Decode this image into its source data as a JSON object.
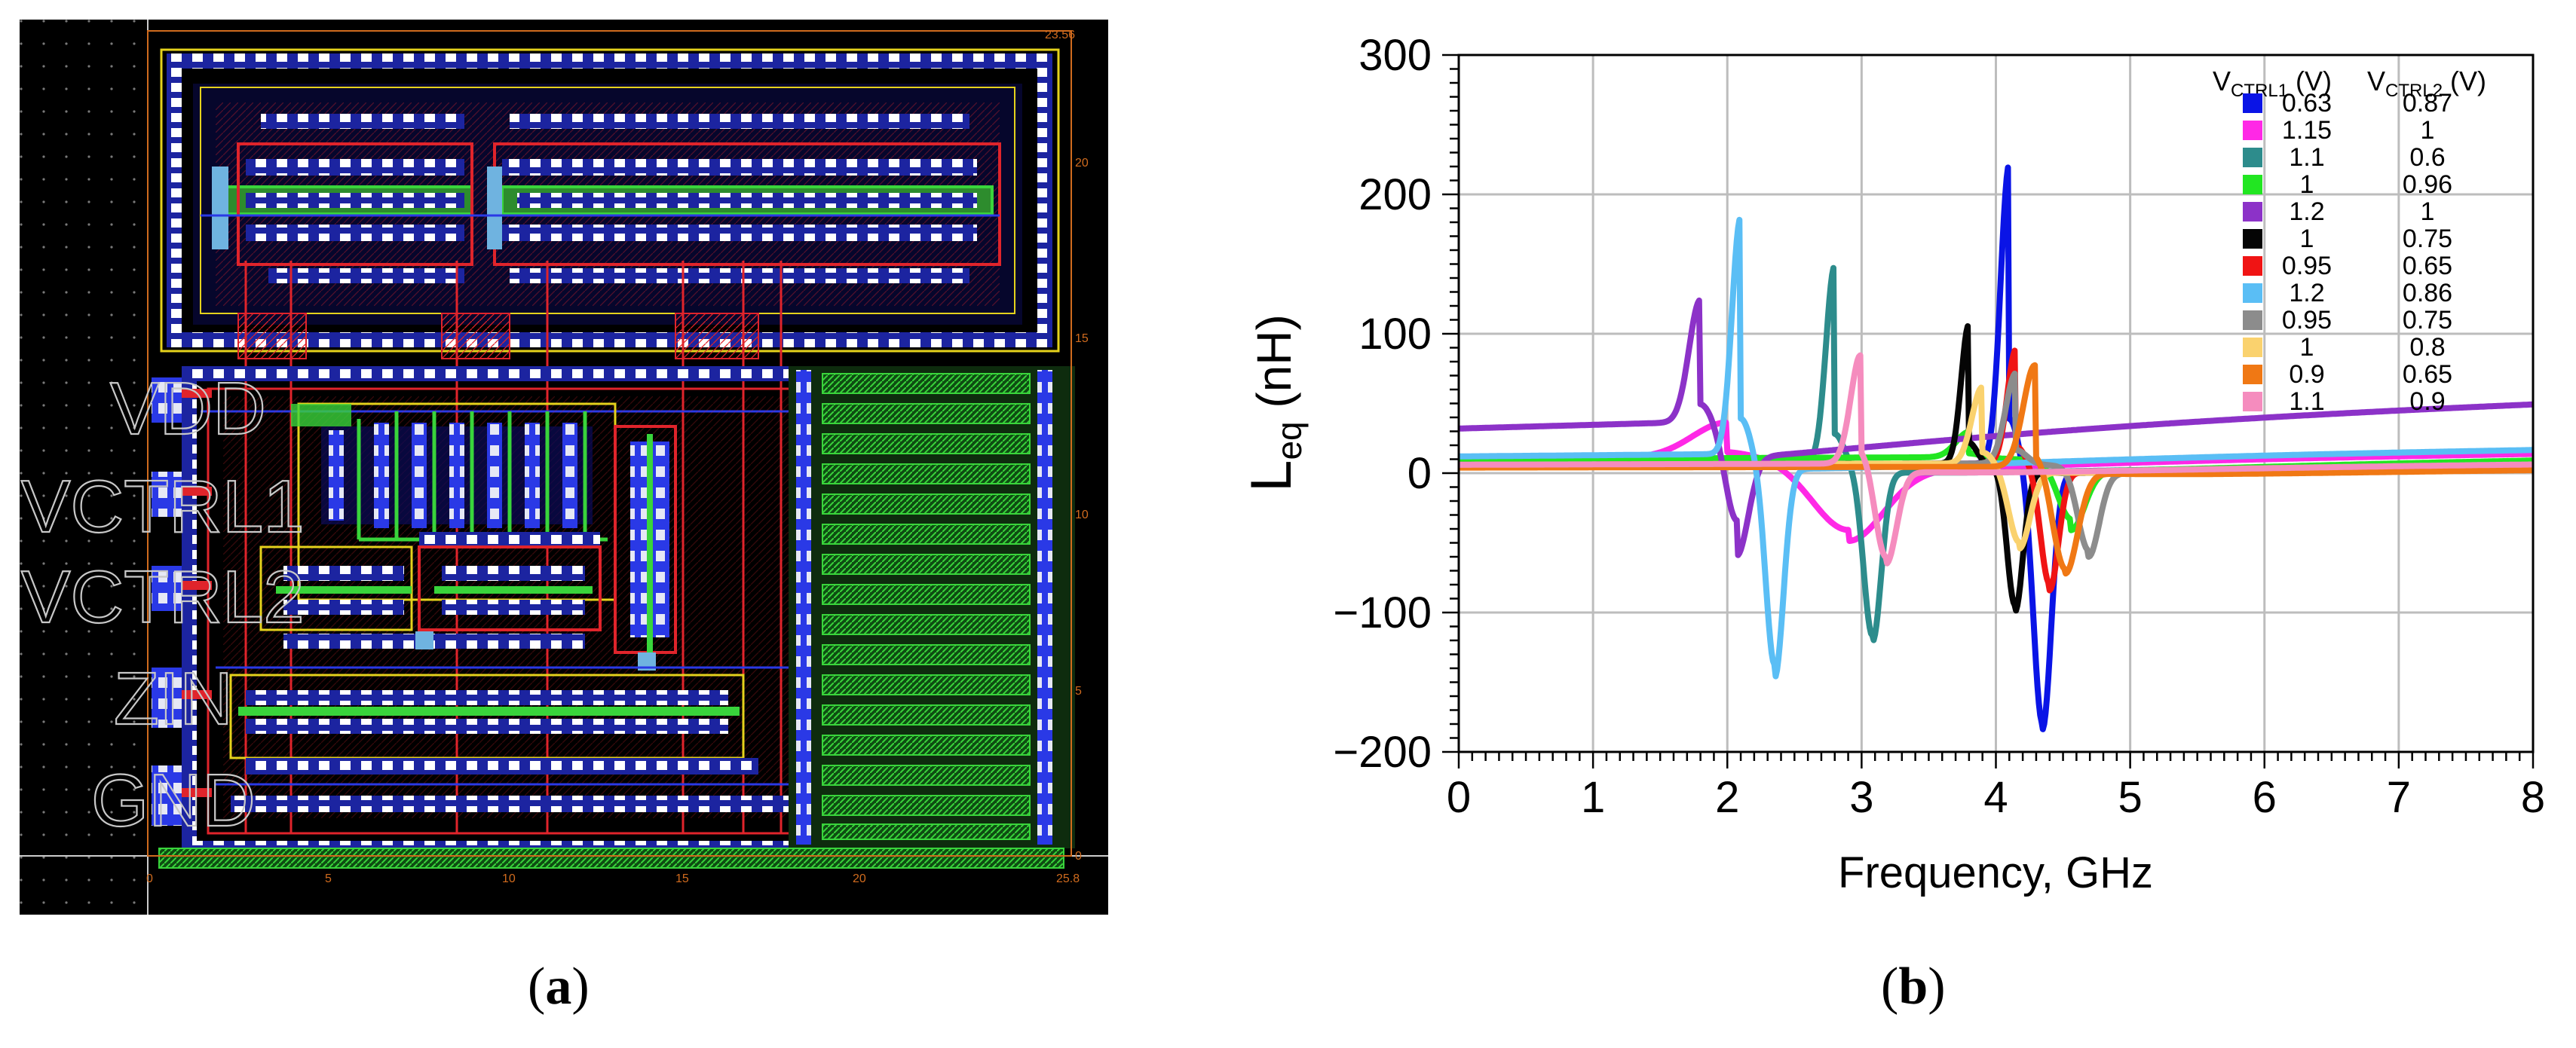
{
  "captions": {
    "a": "(a)",
    "b": "(b)"
  },
  "layout": {
    "pin_labels": [
      "VDD",
      "VCTRL1",
      "VCTRL2",
      "ZIN",
      "GND"
    ],
    "corner_label": "23.56",
    "x_ruler_ticks": [
      "0",
      "5",
      "10",
      "15",
      "20",
      "25.8"
    ],
    "y_ruler_ticks": [
      "0",
      "5",
      "10",
      "15",
      "20"
    ],
    "colors": {
      "background": "#000000",
      "metal_red": "#e0242b",
      "metal_blue": "#2a39e6",
      "poly_green": "#39d43b",
      "yellow": "#e5d21c",
      "contact": "#c8cde0",
      "via_cyan": "#6fb3e0",
      "ruler": "#d06b1e"
    }
  },
  "chart_data": {
    "type": "line",
    "xlabel": "Frequency, GHz",
    "ylabel": "Leq (nH)",
    "ylabel_main": "L",
    "ylabel_sub": "eq",
    "ylabel_rest": " (nH)",
    "xlim": [
      0,
      8
    ],
    "ylim": [
      -200,
      300
    ],
    "x_ticks": [
      0,
      1,
      2,
      3,
      4,
      5,
      6,
      7,
      8
    ],
    "y_ticks": [
      -200,
      -100,
      0,
      100,
      200,
      300
    ],
    "y_tick_labels": [
      "−200",
      "−100",
      "0",
      "100",
      "200",
      "300"
    ],
    "grid": true,
    "legend_position": "top-right",
    "legend_header": {
      "col1_main": "V",
      "col1_sub": "CTRL1",
      "col1_unit": " (V)",
      "col2_main": "V",
      "col2_sub": "CTRL2",
      "col2_unit": " (V)"
    },
    "series": [
      {
        "v1": "0.63",
        "v2": "0.87",
        "color": "#0a14e6",
        "f0": 4.1,
        "w": 0.1,
        "A": 215,
        "B": 185,
        "base": 6,
        "minpos": 1.06
      },
      {
        "v1": "1.15",
        "v2": "1",
        "color": "#ff28e6",
        "f0": 2.0,
        "w": 0.4,
        "A": 25,
        "B": 50,
        "base": 10,
        "minpos": 1.45
      },
      {
        "v1": "1.1",
        "v2": "0.6",
        "color": "#2d8c8c",
        "f0": 2.8,
        "w": 0.1,
        "A": 142,
        "B": 122,
        "base": 6,
        "minpos": 1.1
      },
      {
        "v1": "1",
        "v2": "0.96",
        "color": "#22e622",
        "f0": 3.8,
        "w": 0.15,
        "A": 18,
        "B": 42,
        "base": 10,
        "minpos": 1.2
      },
      {
        "v1": "1.2",
        "v2": "1",
        "color": "#8c32c8",
        "f0": 1.8,
        "w": 0.13,
        "A": 88,
        "B": 70,
        "base": 32,
        "minpos": 1.15
      },
      {
        "v1": "1",
        "v2": "0.75",
        "color": "#050505",
        "f0": 3.8,
        "w": 0.09,
        "A": 100,
        "B": 100,
        "base": 6,
        "minpos": 1.09
      },
      {
        "v1": "0.95",
        "v2": "0.65",
        "color": "#f01414",
        "f0": 4.15,
        "w": 0.1,
        "A": 82,
        "B": 85,
        "base": 6,
        "minpos": 1.06
      },
      {
        "v1": "1.2",
        "v2": "0.86",
        "color": "#5abef5",
        "f0": 2.1,
        "w": 0.1,
        "A": 170,
        "B": 150,
        "base": 12,
        "minpos": 1.12
      },
      {
        "v1": "0.95",
        "v2": "0.75",
        "color": "#8c8c8c",
        "f0": 4.15,
        "w": 0.12,
        "A": 65,
        "B": 60,
        "base": 6,
        "minpos": 1.13
      },
      {
        "v1": "1",
        "v2": "0.8",
        "color": "#fad26e",
        "f0": 3.9,
        "w": 0.12,
        "A": 55,
        "B": 55,
        "base": 6,
        "minpos": 1.07
      },
      {
        "v1": "0.9",
        "v2": "0.65",
        "color": "#f07814",
        "f0": 4.3,
        "w": 0.14,
        "A": 77,
        "B": 73,
        "base": 4,
        "minpos": 1.05
      },
      {
        "v1": "1.1",
        "v2": "0.9",
        "color": "#f58cbe",
        "f0": 3.0,
        "w": 0.12,
        "A": 82,
        "B": 67,
        "base": 6,
        "minpos": 1.06
      }
    ]
  }
}
